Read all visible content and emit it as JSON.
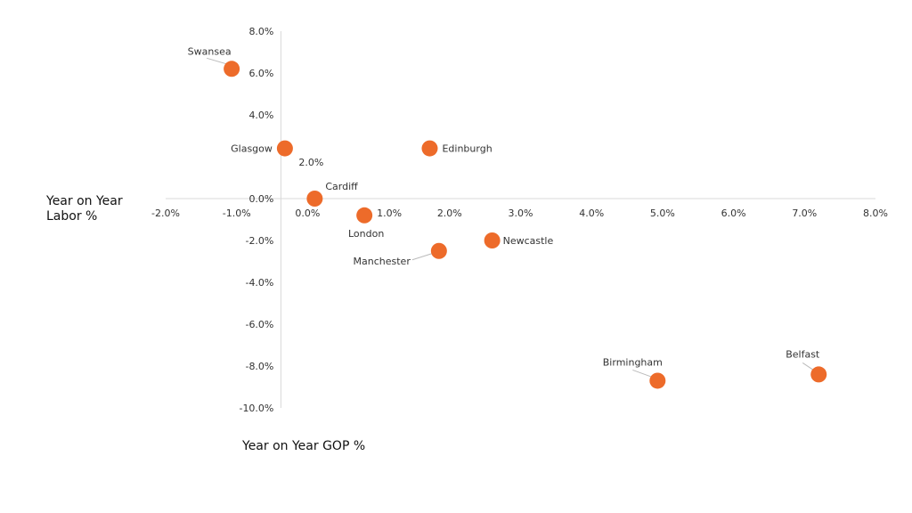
{
  "chart_data": {
    "type": "scatter",
    "title": "",
    "xlabel": "Year on Year GOP %",
    "ylabel_lines": [
      "Year on Year",
      "Labor %"
    ],
    "xlim": [
      -2.0,
      8.0
    ],
    "ylim": [
      -10.0,
      8.0
    ],
    "x_ticks": [
      -2.0,
      -1.0,
      0.0,
      1.0,
      2.0,
      3.0,
      4.0,
      5.0,
      6.0,
      7.0,
      8.0
    ],
    "y_ticks": [
      8.0,
      6.0,
      4.0,
      2.0,
      0.0,
      -2.0,
      -4.0,
      -6.0,
      -8.0,
      -10.0
    ],
    "tick_suffix": "%",
    "grid": false,
    "point_color": "#ED6B2A",
    "leader_color": "#bbbbbb",
    "axis_color": "#d9d9d9",
    "points": [
      {
        "name": "Swansea",
        "x": -1.07,
        "y": 6.2
      },
      {
        "name": "Glasgow",
        "x": -0.32,
        "y": 2.4
      },
      {
        "name": "Edinburgh",
        "x": 1.72,
        "y": 2.4
      },
      {
        "name": "Cardiff",
        "x": 0.1,
        "y": 0.0
      },
      {
        "name": "London",
        "x": 0.8,
        "y": -0.8
      },
      {
        "name": "Manchester",
        "x": 1.85,
        "y": -2.5
      },
      {
        "name": "Newcastle",
        "x": 2.6,
        "y": -2.0
      },
      {
        "name": "Birmingham",
        "x": 4.93,
        "y": -8.7
      },
      {
        "name": "Belfast",
        "x": 7.2,
        "y": -8.4
      }
    ]
  }
}
